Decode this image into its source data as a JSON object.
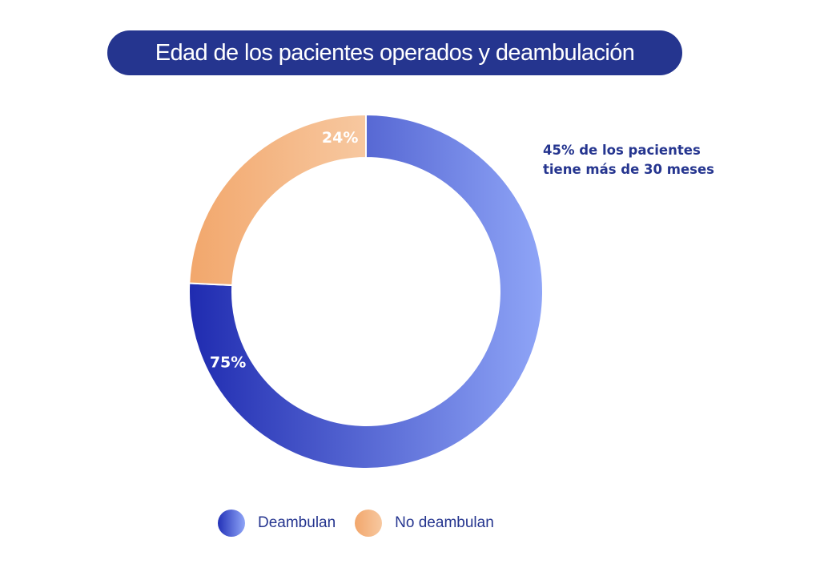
{
  "title": "Edad de los pacientes operados y deambulación",
  "annotation": {
    "line1": "45% de los pacientes",
    "line2": "tiene más de 30 meses"
  },
  "colors": {
    "title_bg": "#25358f",
    "text": "#25358f",
    "deambulan_start": "#1f2bb0",
    "deambulan_end": "#8fa5f7",
    "no_deambulan_start": "#f2a76c",
    "no_deambulan_end": "#f7c8a0"
  },
  "legend": [
    {
      "label": "Deambulan"
    },
    {
      "label": "No deambulan"
    }
  ],
  "chart_data": {
    "type": "pie",
    "style": "donut",
    "title": "Edad de los pacientes operados y deambulación",
    "series": [
      {
        "name": "Deambulan",
        "value": 75,
        "label": "75%"
      },
      {
        "name": "No deambulan",
        "value": 24,
        "label": "24%"
      }
    ],
    "legend_position": "bottom"
  }
}
